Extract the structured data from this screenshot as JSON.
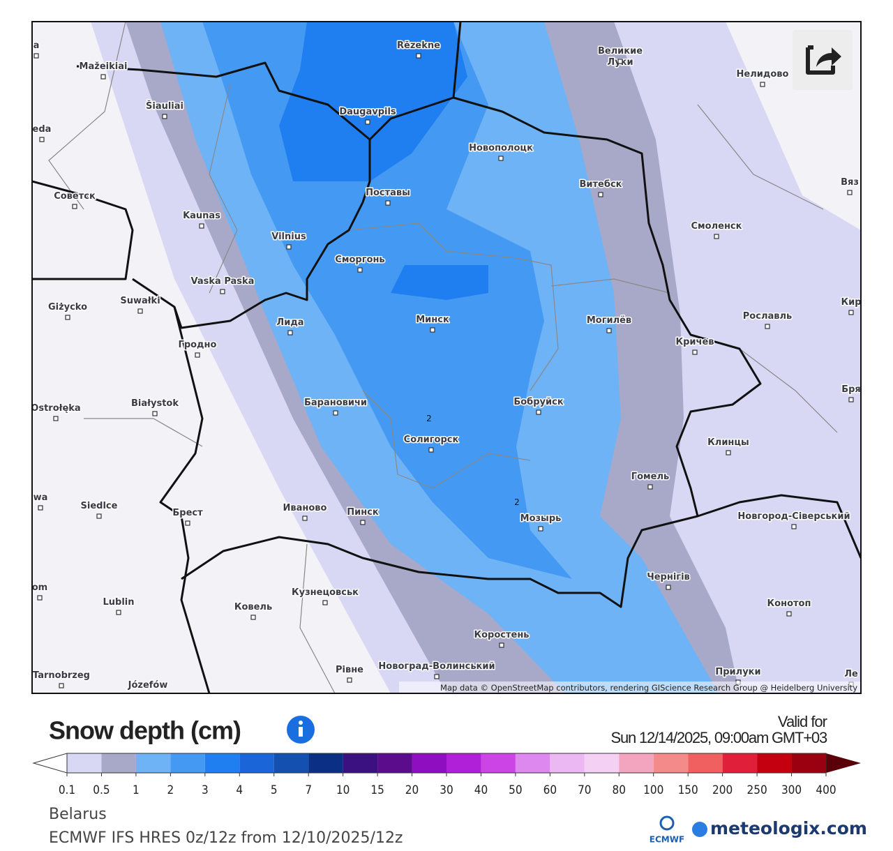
{
  "map": {
    "cities": [
      "Rēzekne",
      "Великие Луки",
      "Нелидово",
      "Mažeikiai",
      "Šiauliai",
      "Daugavpils",
      "Новополоцк",
      "Витебск",
      "Вяз",
      "Советск",
      "Поставы",
      "Kaunas",
      "Смоленск",
      "Vilnius",
      "Сморгонь",
      "Vaska Paska",
      "Giżycko",
      "Suwałki",
      "Минск",
      "Могилёв",
      "Рославль",
      "Кир",
      "Лида",
      "Кричев",
      "Гродно",
      "Бря",
      "Ostrołęka",
      "Białystok",
      "Барановичи",
      "Бобруйск",
      "Солигорск",
      "Клинцы",
      "Гомель",
      "Siedlce",
      "Брест",
      "Иваново",
      "Пинск",
      "Мозырь",
      "Новгород-Сіверський",
      "Чернігів",
      "Lublin",
      "Кузнецовськ",
      "Ковель",
      "Конотоп",
      "Коростень",
      "Новоград-Волинський",
      "Рівне",
      "Прилуки",
      "Tarnobrzeg",
      "Józefów",
      "Ле",
      "wa",
      "om",
      "eda",
      "a"
    ],
    "contour_labels": [
      2,
      2
    ],
    "attribution": "Map data © OpenStreetMap contributors, rendering GIScience Research Group @ Heidelberg University"
  },
  "legend": {
    "title": "Snow depth (cm)",
    "valid_label": "Valid for",
    "valid_time": "Sun 12/14/2025, 09:00am GMT+03",
    "ticks": [
      0.1,
      0.5,
      1,
      2,
      3,
      4,
      5,
      7,
      10,
      15,
      20,
      30,
      40,
      50,
      60,
      70,
      80,
      100,
      150,
      200,
      250,
      300,
      400
    ],
    "colors": [
      "#d8d8f5",
      "#a8a8c8",
      "#6fb3f7",
      "#4499f2",
      "#1f7ef0",
      "#1a66d9",
      "#1450b0",
      "#0c2f86",
      "#3b1080",
      "#5a0c8c",
      "#8f0fc0",
      "#b020d8",
      "#cc44e6",
      "#dd88ee",
      "#ecb8f4",
      "#f5d0f5",
      "#f3a4bf",
      "#f48a8a",
      "#f06060",
      "#e0203a",
      "#c40010",
      "#9a0010"
    ],
    "under_color": "#ffffff",
    "over_color": "#5a0008"
  },
  "footer": {
    "region": "Belarus",
    "model": "ECMWF IFS HRES 0z/12z from 12/10/2025/12z",
    "ecmwf": "ECMWF",
    "brand": "meteologix.com"
  }
}
